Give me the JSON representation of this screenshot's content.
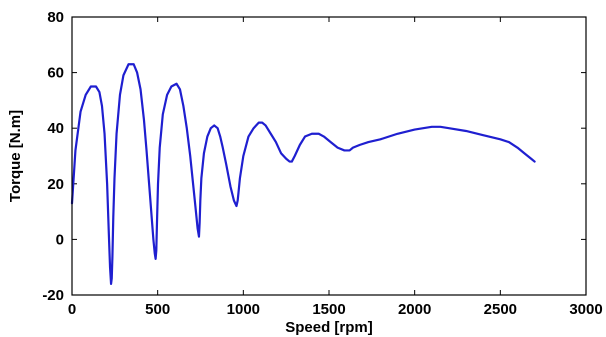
{
  "chart_data": {
    "type": "line",
    "title": "",
    "xlabel": "Speed [rpm]",
    "ylabel": "Torque [N.m]",
    "xlim": [
      0,
      3000
    ],
    "ylim": [
      -20,
      80
    ],
    "xticks": [
      0,
      500,
      1000,
      1500,
      2000,
      2500,
      3000
    ],
    "yticks": [
      -20,
      0,
      20,
      40,
      60,
      80
    ],
    "grid": false,
    "legend": "none",
    "colors": {
      "line": "#1f1fd0",
      "axes": "#000000",
      "background": "#ffffff"
    },
    "series": [
      {
        "x": [
          0,
          20,
          50,
          80,
          110,
          140,
          160,
          175,
          190,
          205,
          215,
          222,
          228,
          232,
          236,
          241,
          248,
          260,
          280,
          300,
          330,
          360,
          380,
          400,
          420,
          435,
          450,
          465,
          475,
          483,
          488,
          492,
          496,
          502,
          512,
          530,
          555,
          580,
          610,
          630,
          650,
          670,
          690,
          705,
          720,
          733,
          741,
          745,
          749,
          755,
          770,
          790,
          810,
          830,
          850,
          865,
          880,
          900,
          925,
          945,
          960,
          967,
          972,
          980,
          1000,
          1030,
          1060,
          1090,
          1110,
          1130,
          1160,
          1190,
          1220,
          1250,
          1270,
          1283,
          1300,
          1330,
          1360,
          1400,
          1440,
          1470,
          1510,
          1550,
          1590,
          1620,
          1640,
          1680,
          1730,
          1800,
          1900,
          2000,
          2100,
          2150,
          2200,
          2300,
          2400,
          2500,
          2550,
          2600,
          2640,
          2680,
          2700
        ],
        "y": [
          13,
          32,
          46,
          52,
          55,
          55,
          53,
          48,
          38,
          20,
          2,
          -10,
          -16,
          -14,
          -6,
          8,
          22,
          38,
          52,
          59,
          63,
          63,
          60,
          54,
          43,
          32,
          20,
          8,
          0,
          -5,
          -7,
          -4,
          6,
          20,
          33,
          45,
          52,
          55,
          56,
          54,
          48,
          40,
          30,
          21,
          12,
          4,
          1,
          6,
          14,
          22,
          31,
          37,
          40,
          41,
          40,
          37,
          33,
          27,
          19,
          14,
          12,
          14,
          17,
          22,
          30,
          37,
          40,
          42,
          42,
          41,
          38,
          35,
          31,
          29,
          28,
          28,
          30,
          34,
          37,
          38,
          38,
          37,
          35,
          33,
          32,
          32,
          33,
          34,
          35,
          36,
          38,
          39.5,
          40.5,
          40.5,
          40,
          39,
          37.5,
          36,
          35,
          33,
          31,
          29,
          28
        ]
      }
    ]
  }
}
